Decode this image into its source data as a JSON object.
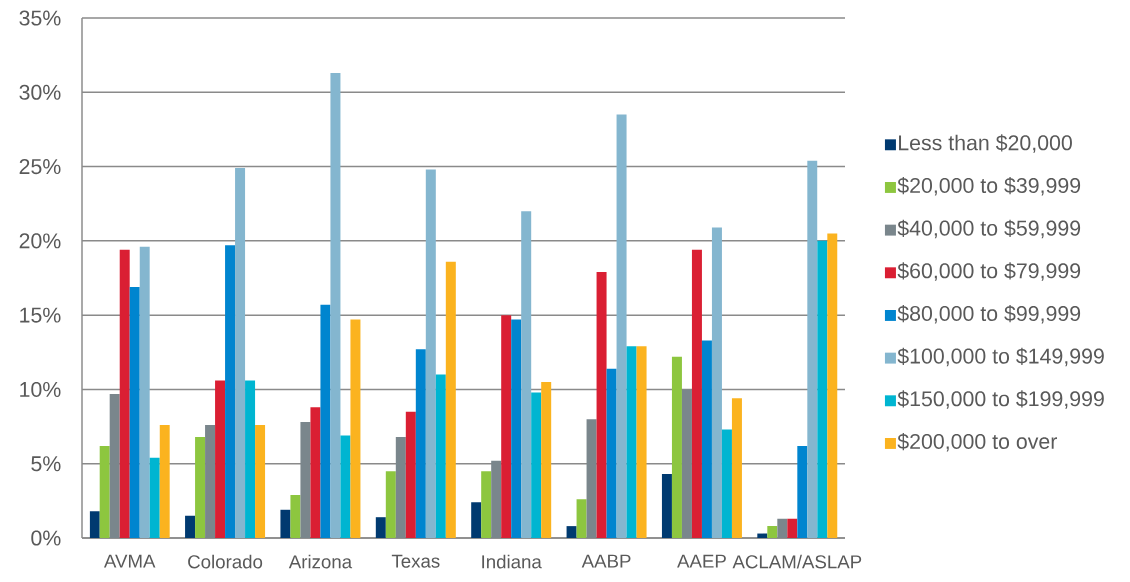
{
  "chart_data": {
    "type": "bar",
    "categories": [
      "AVMA",
      "Colorado",
      "Arizona",
      "Texas",
      "Indiana",
      "AABP",
      "AAEP",
      "ACLAM/ASLAP"
    ],
    "series": [
      {
        "name": "Less than $20,000",
        "color": "#003a70",
        "values": [
          1.8,
          1.5,
          1.9,
          1.4,
          2.4,
          0.8,
          4.3,
          0.3
        ]
      },
      {
        "name": "$20,000 to $39,999",
        "color": "#8dc63f",
        "values": [
          6.2,
          6.8,
          2.9,
          4.5,
          4.5,
          2.6,
          12.2,
          0.8
        ]
      },
      {
        "name": "$40,000 to $59,999",
        "color": "#7a868c",
        "values": [
          9.7,
          7.6,
          7.8,
          6.8,
          5.2,
          8.0,
          10.0,
          1.3
        ]
      },
      {
        "name": "$60,000 to $79,999",
        "color": "#da1f33",
        "values": [
          19.4,
          10.6,
          8.8,
          8.5,
          15.0,
          17.9,
          19.4,
          1.3
        ]
      },
      {
        "name": "$80,000 to $99,999",
        "color": "#0085cf",
        "values": [
          16.9,
          19.7,
          15.7,
          12.7,
          14.7,
          11.4,
          13.3,
          6.2
        ]
      },
      {
        "name": "$100,000 to $149,999",
        "color": "#84b6cf",
        "values": [
          19.6,
          24.9,
          31.3,
          24.8,
          22.0,
          28.5,
          20.9,
          25.4
        ]
      },
      {
        "name": "$150,000 to $199,999",
        "color": "#00b5d1",
        "values": [
          5.4,
          10.6,
          6.9,
          11.0,
          9.8,
          12.9,
          7.3,
          20.0
        ]
      },
      {
        "name": "$200,000 to over",
        "color": "#fbb31f",
        "values": [
          7.6,
          7.6,
          14.7,
          18.6,
          10.5,
          12.9,
          9.4,
          20.5
        ]
      }
    ],
    "ylim": [
      0,
      35
    ],
    "yticks": [
      {
        "value": 0,
        "label": "0%"
      },
      {
        "value": 5,
        "label": "5%"
      },
      {
        "value": 10,
        "label": "10%"
      },
      {
        "value": 15,
        "label": "15%"
      },
      {
        "value": 20,
        "label": "20%"
      },
      {
        "value": 25,
        "label": "25%"
      },
      {
        "value": 30,
        "label": "30%"
      },
      {
        "value": 35,
        "label": "35%"
      }
    ],
    "grid": "y",
    "legend": "right"
  }
}
